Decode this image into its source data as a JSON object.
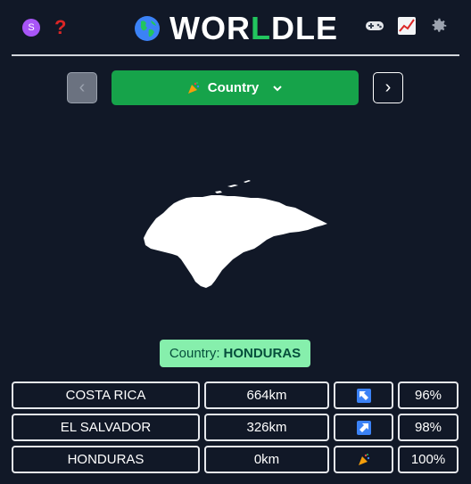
{
  "header": {
    "avatar_initial": "S",
    "help_glyph": "?",
    "title_pre": "WOR",
    "title_l": "L",
    "title_post": "DLE",
    "icons": [
      "globe-icon",
      "gamepad-icon",
      "chart-icon",
      "gear-icon"
    ]
  },
  "nav": {
    "prev_glyph": "‹",
    "next_glyph": "›",
    "mode_label": "Country"
  },
  "answer": {
    "label": "Country:",
    "value": "HONDURAS"
  },
  "guesses": [
    {
      "country": "COSTA RICA",
      "distance": "664km",
      "direction": "arrow-up-left-icon",
      "proximity": "96%"
    },
    {
      "country": "EL SALVADOR",
      "distance": "326km",
      "direction": "arrow-up-right-icon",
      "proximity": "98%"
    },
    {
      "country": "HONDURAS",
      "distance": "0km",
      "direction": "party-popper-icon",
      "proximity": "100%"
    }
  ],
  "colors": {
    "background": "#111827",
    "accent_green": "#16a34a",
    "answer_bg": "#86efac",
    "arrow_blue": "#3b82f6"
  }
}
